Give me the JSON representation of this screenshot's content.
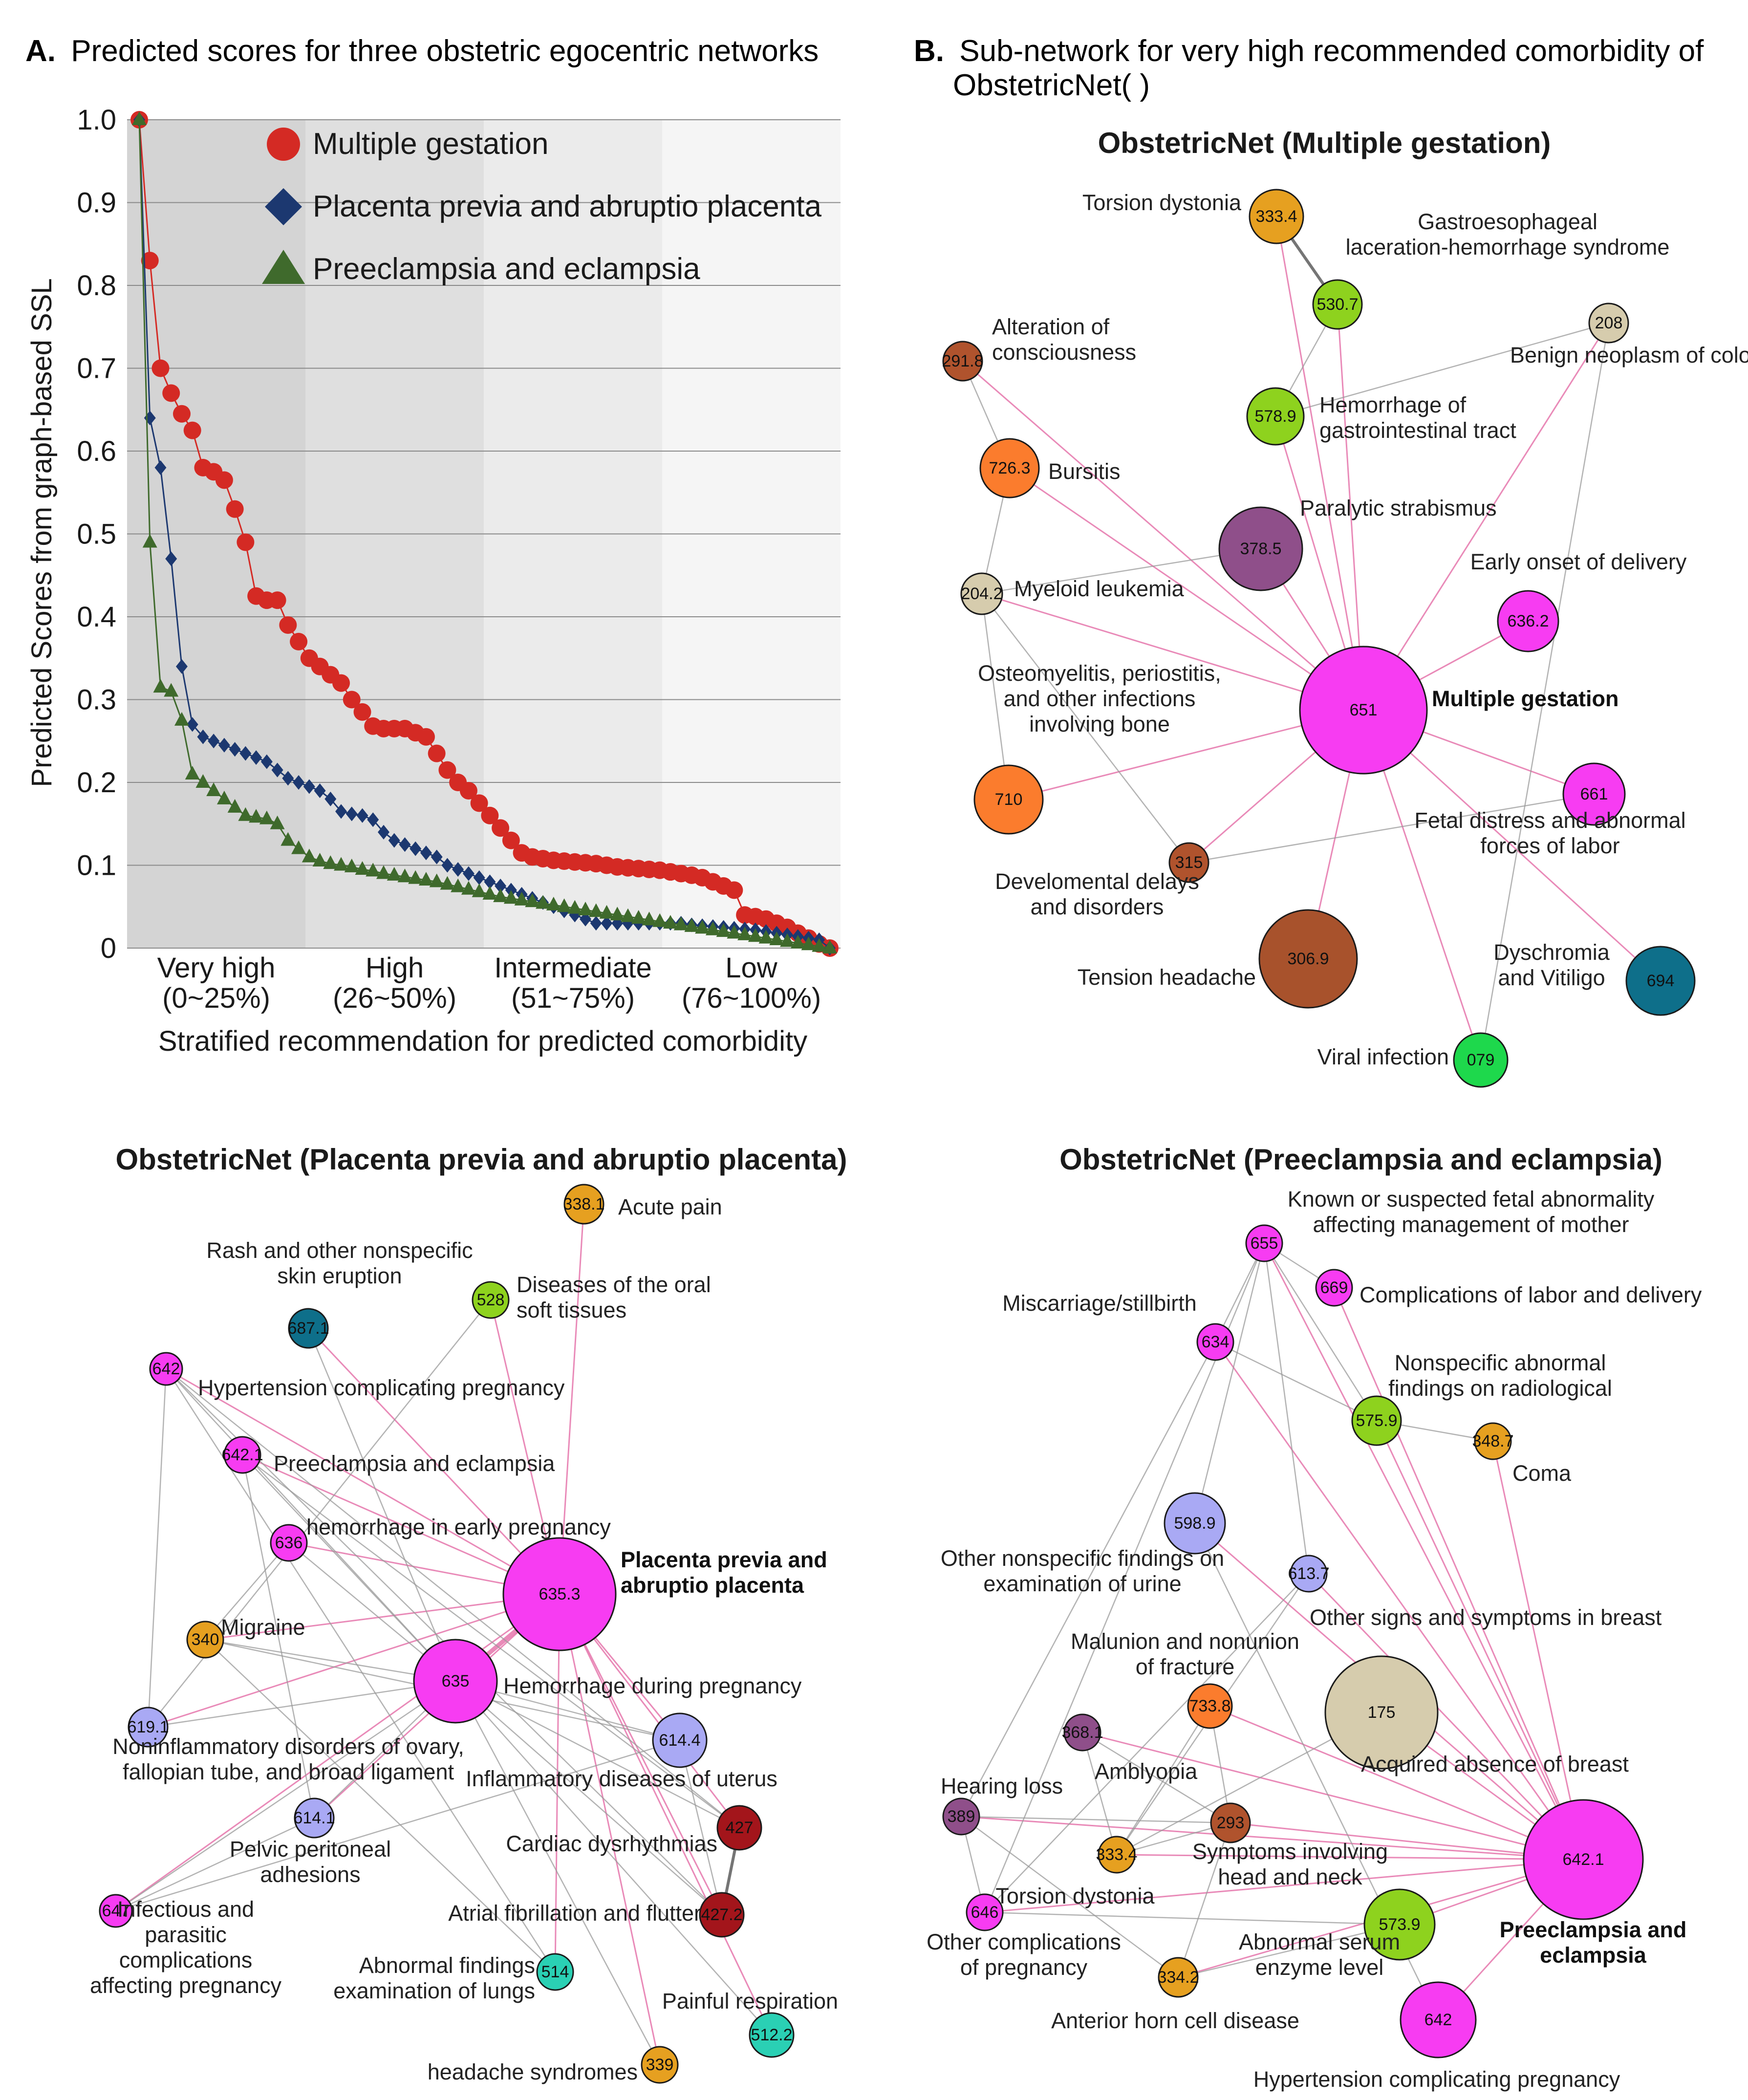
{
  "panel_a": {
    "letter": "A.",
    "title": "Predicted scores for three obstetric egocentric networks"
  },
  "panel_b": {
    "letter": "B.",
    "title_line1": "Sub-network for very high recommended comorbidity of",
    "title_line2": "ObstetricNet( )"
  },
  "colors": {
    "red": "#d42a24",
    "blue": "#1c3870",
    "green": "#3f6a2c"
  },
  "chart_data": {
    "type": "line",
    "title": "Predicted scores for three obstetric egocentric networks",
    "xlabel": "Stratified recommendation for predicted comorbidity",
    "ylabel": "Predicted Scores from graph-based SSL",
    "ylim": [
      0,
      1.0
    ],
    "yticks": [
      "0",
      "0.1",
      "0.2",
      "0.3",
      "0.4",
      "0.5",
      "0.6",
      "0.7",
      "0.8",
      "0.9",
      "1.0"
    ],
    "strata": [
      {
        "name": "Very high",
        "range": "(0~25%)",
        "shade": "#d4d4d4"
      },
      {
        "name": "High",
        "range": "(26~50%)",
        "shade": "#dfdfdf"
      },
      {
        "name": "Intermediate",
        "range": "(51~75%)",
        "shade": "#ebebeb"
      },
      {
        "name": "Low",
        "range": "(76~100%)",
        "shade": "#f5f5f5"
      }
    ],
    "legend_position": "top-center",
    "series": [
      {
        "name": "Multiple gestation",
        "marker": "circle",
        "color": "#d42a24",
        "values": [
          1.0,
          0.83,
          0.7,
          0.67,
          0.645,
          0.625,
          0.58,
          0.575,
          0.565,
          0.53,
          0.49,
          0.425,
          0.42,
          0.42,
          0.39,
          0.37,
          0.35,
          0.34,
          0.33,
          0.32,
          0.3,
          0.285,
          0.268,
          0.265,
          0.265,
          0.265,
          0.26,
          0.255,
          0.235,
          0.215,
          0.2,
          0.19,
          0.175,
          0.16,
          0.145,
          0.13,
          0.115,
          0.11,
          0.108,
          0.106,
          0.105,
          0.104,
          0.103,
          0.102,
          0.1,
          0.098,
          0.097,
          0.096,
          0.095,
          0.094,
          0.092,
          0.09,
          0.088,
          0.085,
          0.08,
          0.075,
          0.07,
          0.04,
          0.038,
          0.035,
          0.03,
          0.025,
          0.018,
          0.012,
          0.005,
          0.0
        ]
      },
      {
        "name": "Placenta previa and abruptio placenta",
        "marker": "diamond",
        "color": "#1c3870",
        "values": [
          1.0,
          0.64,
          0.58,
          0.47,
          0.34,
          0.27,
          0.255,
          0.25,
          0.245,
          0.24,
          0.235,
          0.23,
          0.225,
          0.215,
          0.205,
          0.2,
          0.195,
          0.19,
          0.18,
          0.165,
          0.162,
          0.16,
          0.155,
          0.14,
          0.13,
          0.125,
          0.12,
          0.115,
          0.11,
          0.1,
          0.095,
          0.09,
          0.085,
          0.08,
          0.075,
          0.07,
          0.065,
          0.06,
          0.055,
          0.05,
          0.045,
          0.04,
          0.035,
          0.03,
          0.03,
          0.03,
          0.03,
          0.03,
          0.03,
          0.03,
          0.03,
          0.03,
          0.028,
          0.027,
          0.026,
          0.025,
          0.024,
          0.023,
          0.022,
          0.02,
          0.018,
          0.016,
          0.014,
          0.012,
          0.01,
          0.0
        ]
      },
      {
        "name": "Preeclampsia and eclampsia",
        "marker": "triangle",
        "color": "#3f6a2c",
        "values": [
          1.0,
          0.49,
          0.315,
          0.31,
          0.275,
          0.21,
          0.2,
          0.19,
          0.18,
          0.17,
          0.16,
          0.158,
          0.156,
          0.15,
          0.13,
          0.12,
          0.11,
          0.105,
          0.102,
          0.1,
          0.098,
          0.095,
          0.093,
          0.09,
          0.088,
          0.086,
          0.084,
          0.082,
          0.08,
          0.077,
          0.074,
          0.071,
          0.068,
          0.065,
          0.062,
          0.06,
          0.058,
          0.056,
          0.054,
          0.052,
          0.05,
          0.048,
          0.046,
          0.044,
          0.042,
          0.04,
          0.038,
          0.036,
          0.034,
          0.032,
          0.03,
          0.028,
          0.026,
          0.024,
          0.022,
          0.02,
          0.018,
          0.016,
          0.014,
          0.012,
          0.01,
          0.008,
          0.006,
          0.004,
          0.002,
          0.0
        ]
      }
    ]
  },
  "net_mg": {
    "title": "ObstetricNet (Multiple gestation)",
    "nodes": [
      {
        "id": "651",
        "label": "Multiple gestation",
        "bold": true,
        "color": "#f73cf2"
      },
      {
        "id": "333.4",
        "label": "Torsion dystonia",
        "color": "#e6a020"
      },
      {
        "id": "530.7",
        "label1": "Gastroesophageal",
        "label2": "laceration-hemorrhage syndrome",
        "color": "#8ed21e"
      },
      {
        "id": "208",
        "label": "Benign neoplasm of colon",
        "color": "#d6ccad"
      },
      {
        "id": "291.8",
        "label1": "Alteration of",
        "label2": "consciousness",
        "color": "#b0532d"
      },
      {
        "id": "578.9",
        "label1": "Hemorrhage of",
        "label2": "gastrointestinal tract",
        "color": "#8ed21e"
      },
      {
        "id": "726.3",
        "label": "Bursitis",
        "color": "#fb7c2d"
      },
      {
        "id": "378.5",
        "label": "Paralytic strabismus",
        "color": "#8f4f8a"
      },
      {
        "id": "204.2",
        "label": "Myeloid leukemia",
        "color": "#d6ccad"
      },
      {
        "id": "636.2",
        "label": "Early onset of delivery",
        "color": "#f73cf2"
      },
      {
        "id": "710",
        "label1": "Osteomyelitis, periostitis,",
        "label2": "and other infections",
        "label3": "involving bone",
        "color": "#fb7c2d"
      },
      {
        "id": "661",
        "label1": "Fetal distress and abnormal",
        "label2": "forces of labor",
        "color": "#f73cf2"
      },
      {
        "id": "315",
        "label1": "Develomental delays",
        "label2": "and disorders",
        "color": "#b0532d"
      },
      {
        "id": "306.9",
        "label": "Tension headache",
        "color": "#a8522c"
      },
      {
        "id": "694",
        "label1": "Dyschromia",
        "label2": "and Vitiligo",
        "color": "#0e6f8a"
      },
      {
        "id": "079",
        "label": "Viral infection",
        "color": "#1ed84c"
      }
    ]
  },
  "net_pp": {
    "title": "ObstetricNet (Placenta previa and abruptio placenta)",
    "nodes": [
      {
        "id": "635.3",
        "label1": "Placenta previa and",
        "label2": "abruptio placenta",
        "bold": true,
        "color": "#f73cf2"
      },
      {
        "id": "338.1",
        "label": "Acute pain",
        "color": "#e6a020"
      },
      {
        "id": "528",
        "label1": "Diseases of the oral",
        "label2": "soft tissues",
        "color": "#8ed21e"
      },
      {
        "id": "687.1",
        "label1": "Rash and other nonspecific",
        "label2": "skin eruption",
        "color": "#0e6f8a"
      },
      {
        "id": "642",
        "label": "Hypertension complicating pregnancy",
        "color": "#f73cf2"
      },
      {
        "id": "642.1",
        "label": "Preeclampsia and eclampsia",
        "color": "#f73cf2"
      },
      {
        "id": "636",
        "label": "hemorrhage in early pregnancy",
        "color": "#f73cf2"
      },
      {
        "id": "340",
        "label": "Migraine",
        "color": "#e6a020"
      },
      {
        "id": "635",
        "label": "Hemorrhage during pregnancy",
        "color": "#f73cf2"
      },
      {
        "id": "619.1",
        "label1": "Noninflammatory disorders of ovary,",
        "label2": "fallopian tube, and broad ligament",
        "color": "#a9a9f4"
      },
      {
        "id": "614.4",
        "label": "Inflammatory diseases of uterus",
        "color": "#a9a9f4"
      },
      {
        "id": "614.1",
        "label1": "Pelvic peritoneal",
        "label2": "adhesions",
        "color": "#a9a9f4"
      },
      {
        "id": "427",
        "label": "Cardiac dysrhythmias",
        "color": "#a3151b"
      },
      {
        "id": "427.2",
        "label": "Atrial fibrillation and flutter",
        "color": "#a3151b"
      },
      {
        "id": "647",
        "label1": "Infectious and",
        "label2": "parasitic",
        "label3": "complications",
        "label4": "affecting pregnancy",
        "color": "#f73cf2"
      },
      {
        "id": "514",
        "label1": "Abnormal findings",
        "label2": "examination of lungs",
        "color": "#2ad0b4"
      },
      {
        "id": "512.2",
        "label": "Painful respiration",
        "color": "#2ad0b4"
      },
      {
        "id": "339",
        "label": "headache syndromes",
        "color": "#e6a020"
      }
    ]
  },
  "net_pe": {
    "title": "ObstetricNet (Preeclampsia and eclampsia)",
    "nodes": [
      {
        "id": "642.1",
        "label1": "Preeclampsia and",
        "label2": "eclampsia",
        "bold": true,
        "color": "#f73cf2"
      },
      {
        "id": "655",
        "label1": "Known or suspected fetal abnormality",
        "label2": "affecting management of mother",
        "color": "#f73cf2"
      },
      {
        "id": "669",
        "label": "Complications of labor and delivery",
        "color": "#f73cf2"
      },
      {
        "id": "634",
        "label": "Miscarriage/stillbirth",
        "color": "#f73cf2"
      },
      {
        "id": "575.9",
        "label1": "Nonspecific abnormal",
        "label2": "findings on radiological",
        "color": "#8ed21e"
      },
      {
        "id": "348.7",
        "label": "Coma",
        "color": "#e6a020"
      },
      {
        "id": "598.9",
        "label1": "Other nonspecific findings on",
        "label2": "examination of urine",
        "color": "#a9a9f4"
      },
      {
        "id": "613.7",
        "label": "Other signs and symptoms in breast",
        "color": "#a9a9f4"
      },
      {
        "id": "733.8",
        "label1": "Malunion and nonunion",
        "label2": "of fracture",
        "color": "#fb7c2d"
      },
      {
        "id": "175",
        "label": "Acquired absence of breast",
        "color": "#d6ccad"
      },
      {
        "id": "368.1",
        "label": "Amblyopia",
        "color": "#8f4f8a"
      },
      {
        "id": "389",
        "label": "Hearing loss",
        "color": "#8f4f8a"
      },
      {
        "id": "293",
        "label1": "Symptoms involving",
        "label2": "head and neck",
        "color": "#b0532d"
      },
      {
        "id": "333.4",
        "label": "Torsion dystonia",
        "color": "#e6a020"
      },
      {
        "id": "646",
        "label1": "Other complications",
        "label2": "of pregnancy",
        "color": "#f73cf2"
      },
      {
        "id": "573.9",
        "label1": "Abnormal serum",
        "label2": "enzyme level",
        "color": "#8ed21e"
      },
      {
        "id": "334.2",
        "label": "Anterior horn cell disease",
        "color": "#e6a020"
      },
      {
        "id": "642",
        "label": "Hypertension complicating pregnancy",
        "color": "#f73cf2"
      }
    ]
  }
}
